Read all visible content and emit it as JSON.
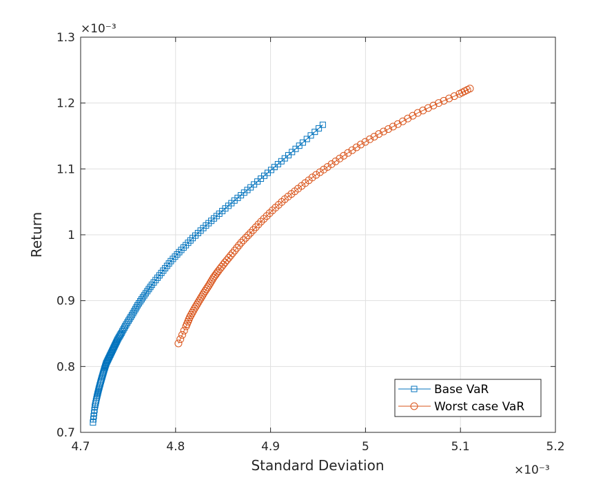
{
  "chart_data": {
    "type": "line",
    "xlabel": "Standard Deviation",
    "ylabel": "Return",
    "x_exponent_label": "×10⁻³",
    "y_exponent_label": "×10⁻³",
    "xlim": [
      4.7,
      5.2
    ],
    "ylim": [
      0.7,
      1.3
    ],
    "xticks": [
      4.7,
      4.8,
      4.9,
      5.0,
      5.1,
      5.2
    ],
    "yticks": [
      0.7,
      0.8,
      0.9,
      1.0,
      1.1,
      1.2,
      1.3
    ],
    "xtick_labels": [
      "4.7",
      "4.8",
      "4.9",
      "5",
      "5.1",
      "5.2"
    ],
    "ytick_labels": [
      "0.7",
      "0.8",
      "0.9",
      "1",
      "1.1",
      "1.2",
      "1.3"
    ],
    "grid": true,
    "legend_position": "bottom-right",
    "series": [
      {
        "name": "Base VaR",
        "marker": "square",
        "color": "#0072BD",
        "x": [
          4.713,
          4.715,
          4.717,
          4.719,
          4.721,
          4.723,
          4.725,
          4.727,
          4.73,
          4.733,
          4.736,
          4.739,
          4.743,
          4.748,
          4.754,
          4.76,
          4.767,
          4.775,
          4.785,
          4.795,
          4.806,
          4.818,
          4.832,
          4.846,
          4.862,
          4.879,
          4.897,
          4.915,
          4.934,
          4.955
        ],
        "y": [
          0.715,
          0.739,
          0.753,
          0.765,
          0.776,
          0.786,
          0.796,
          0.805,
          0.814,
          0.823,
          0.832,
          0.841,
          0.851,
          0.864,
          0.878,
          0.893,
          0.908,
          0.924,
          0.942,
          0.96,
          0.977,
          0.995,
          1.014,
          1.032,
          1.052,
          1.072,
          1.094,
          1.116,
          1.14,
          1.167
        ]
      },
      {
        "name": "Worst case VaR",
        "marker": "circle",
        "color": "#D95319",
        "x": [
          4.803,
          4.811,
          4.815,
          4.82,
          4.825,
          4.83,
          4.835,
          4.84,
          4.845,
          4.852,
          4.86,
          4.869,
          4.879,
          4.89,
          4.902,
          4.915,
          4.929,
          4.944,
          4.96,
          4.977,
          4.995,
          5.014,
          5.034,
          5.055,
          5.077,
          5.099,
          5.11
        ],
        "y": [
          0.835,
          0.861,
          0.875,
          0.888,
          0.9,
          0.912,
          0.923,
          0.935,
          0.945,
          0.958,
          0.972,
          0.988,
          1.003,
          1.02,
          1.037,
          1.054,
          1.07,
          1.087,
          1.103,
          1.12,
          1.137,
          1.153,
          1.168,
          1.185,
          1.2,
          1.214,
          1.222
        ]
      }
    ]
  }
}
